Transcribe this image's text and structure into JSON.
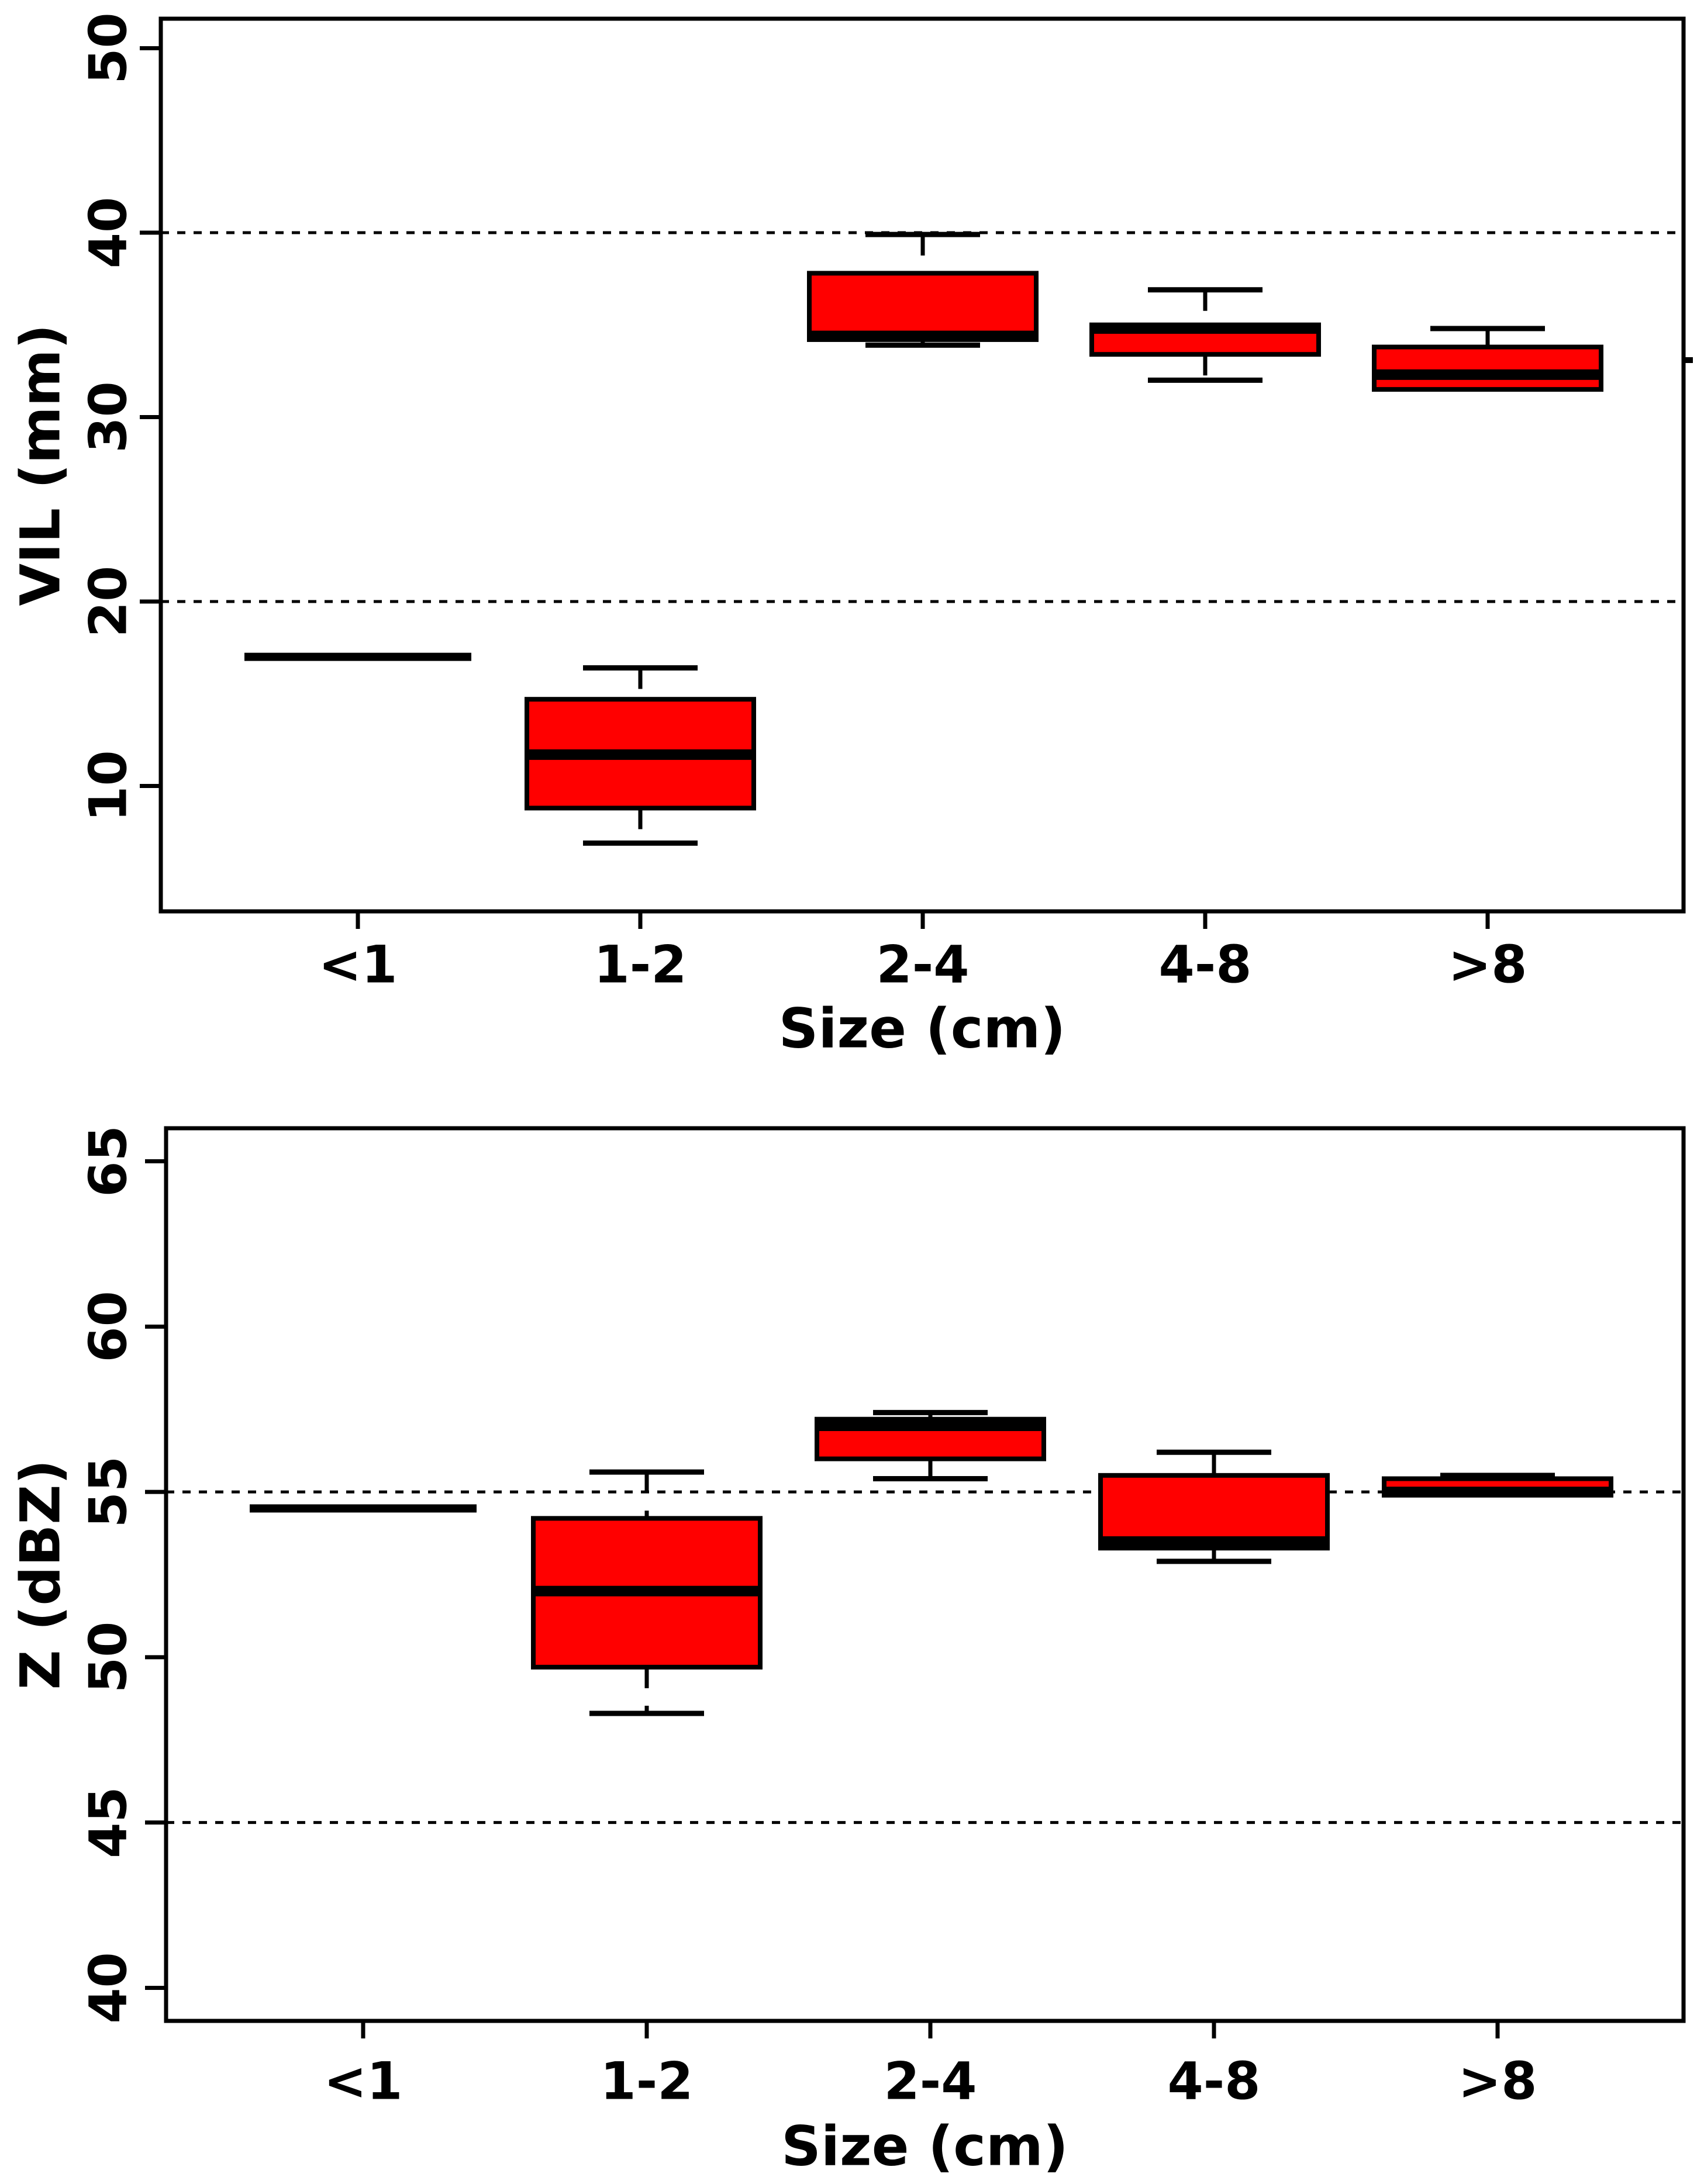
{
  "figure": {
    "background": "#ffffff",
    "box_fill_color": "#ff0000",
    "line_color": "#000000"
  },
  "chart_data": [
    {
      "type": "box",
      "title": "",
      "xlabel": "Size (cm)",
      "ylabel": "VIL (mm)",
      "categories": [
        "<1",
        "1-2",
        "2-4",
        "4-8",
        ">8"
      ],
      "yticks": [
        10,
        20,
        30,
        40,
        50
      ],
      "gridlines_y": [
        20,
        40
      ],
      "grid_style": "dotted-horizontal",
      "ylim": [
        3.2,
        51.6
      ],
      "legend": "none",
      "boxes": [
        {
          "category": "<1",
          "degenerate_line": true,
          "median": 17.0,
          "q1": 17.0,
          "q3": 17.0,
          "whisker_low": 17.0,
          "whisker_high": 17.0
        },
        {
          "category": "1-2",
          "degenerate_line": false,
          "whisker_low": 6.9,
          "q1": 8.8,
          "median": 11.7,
          "q3": 14.7,
          "whisker_high": 16.4
        },
        {
          "category": "2-4",
          "degenerate_line": false,
          "whisker_low": 33.9,
          "q1": 34.2,
          "median": 34.4,
          "q3": 37.8,
          "whisker_high": 39.9
        },
        {
          "category": "4-8",
          "degenerate_line": false,
          "whisker_low": 32.0,
          "q1": 33.4,
          "median": 34.8,
          "q3": 35.0,
          "whisker_high": 36.9
        },
        {
          "category": ">8",
          "degenerate_line": false,
          "whisker_low": 31.5,
          "q1": 31.5,
          "median": 32.3,
          "q3": 33.8,
          "whisker_high": 34.8
        }
      ]
    },
    {
      "type": "box",
      "title": "",
      "xlabel": "Size (cm)",
      "ylabel": "Z (dBZ)",
      "categories": [
        "<1",
        "1-2",
        "2-4",
        "4-8",
        ">8"
      ],
      "yticks": [
        40,
        45,
        50,
        55,
        60,
        65
      ],
      "gridlines_y": [
        45,
        55
      ],
      "grid_style": "dotted-horizontal",
      "ylim": [
        39.0,
        66.0
      ],
      "legend": "none",
      "boxes": [
        {
          "category": "<1",
          "degenerate_line": true,
          "median": 54.5,
          "q1": 54.5,
          "q3": 54.5,
          "whisker_low": 54.5,
          "whisker_high": 54.5
        },
        {
          "category": "1-2",
          "degenerate_line": false,
          "whisker_low": 48.3,
          "q1": 49.7,
          "median": 52.0,
          "q3": 54.2,
          "whisker_high": 55.6
        },
        {
          "category": "2-4",
          "degenerate_line": false,
          "whisker_low": 55.4,
          "q1": 56.0,
          "median": 57.0,
          "q3": 57.2,
          "whisker_high": 57.4
        },
        {
          "category": "4-8",
          "degenerate_line": false,
          "whisker_low": 52.9,
          "q1": 53.3,
          "median": 53.5,
          "q3": 55.5,
          "whisker_high": 56.2
        },
        {
          "category": ">8",
          "degenerate_line": false,
          "whisker_low": 54.9,
          "q1": 54.9,
          "median": 55.0,
          "q3": 55.4,
          "whisker_high": 55.5
        }
      ]
    }
  ]
}
